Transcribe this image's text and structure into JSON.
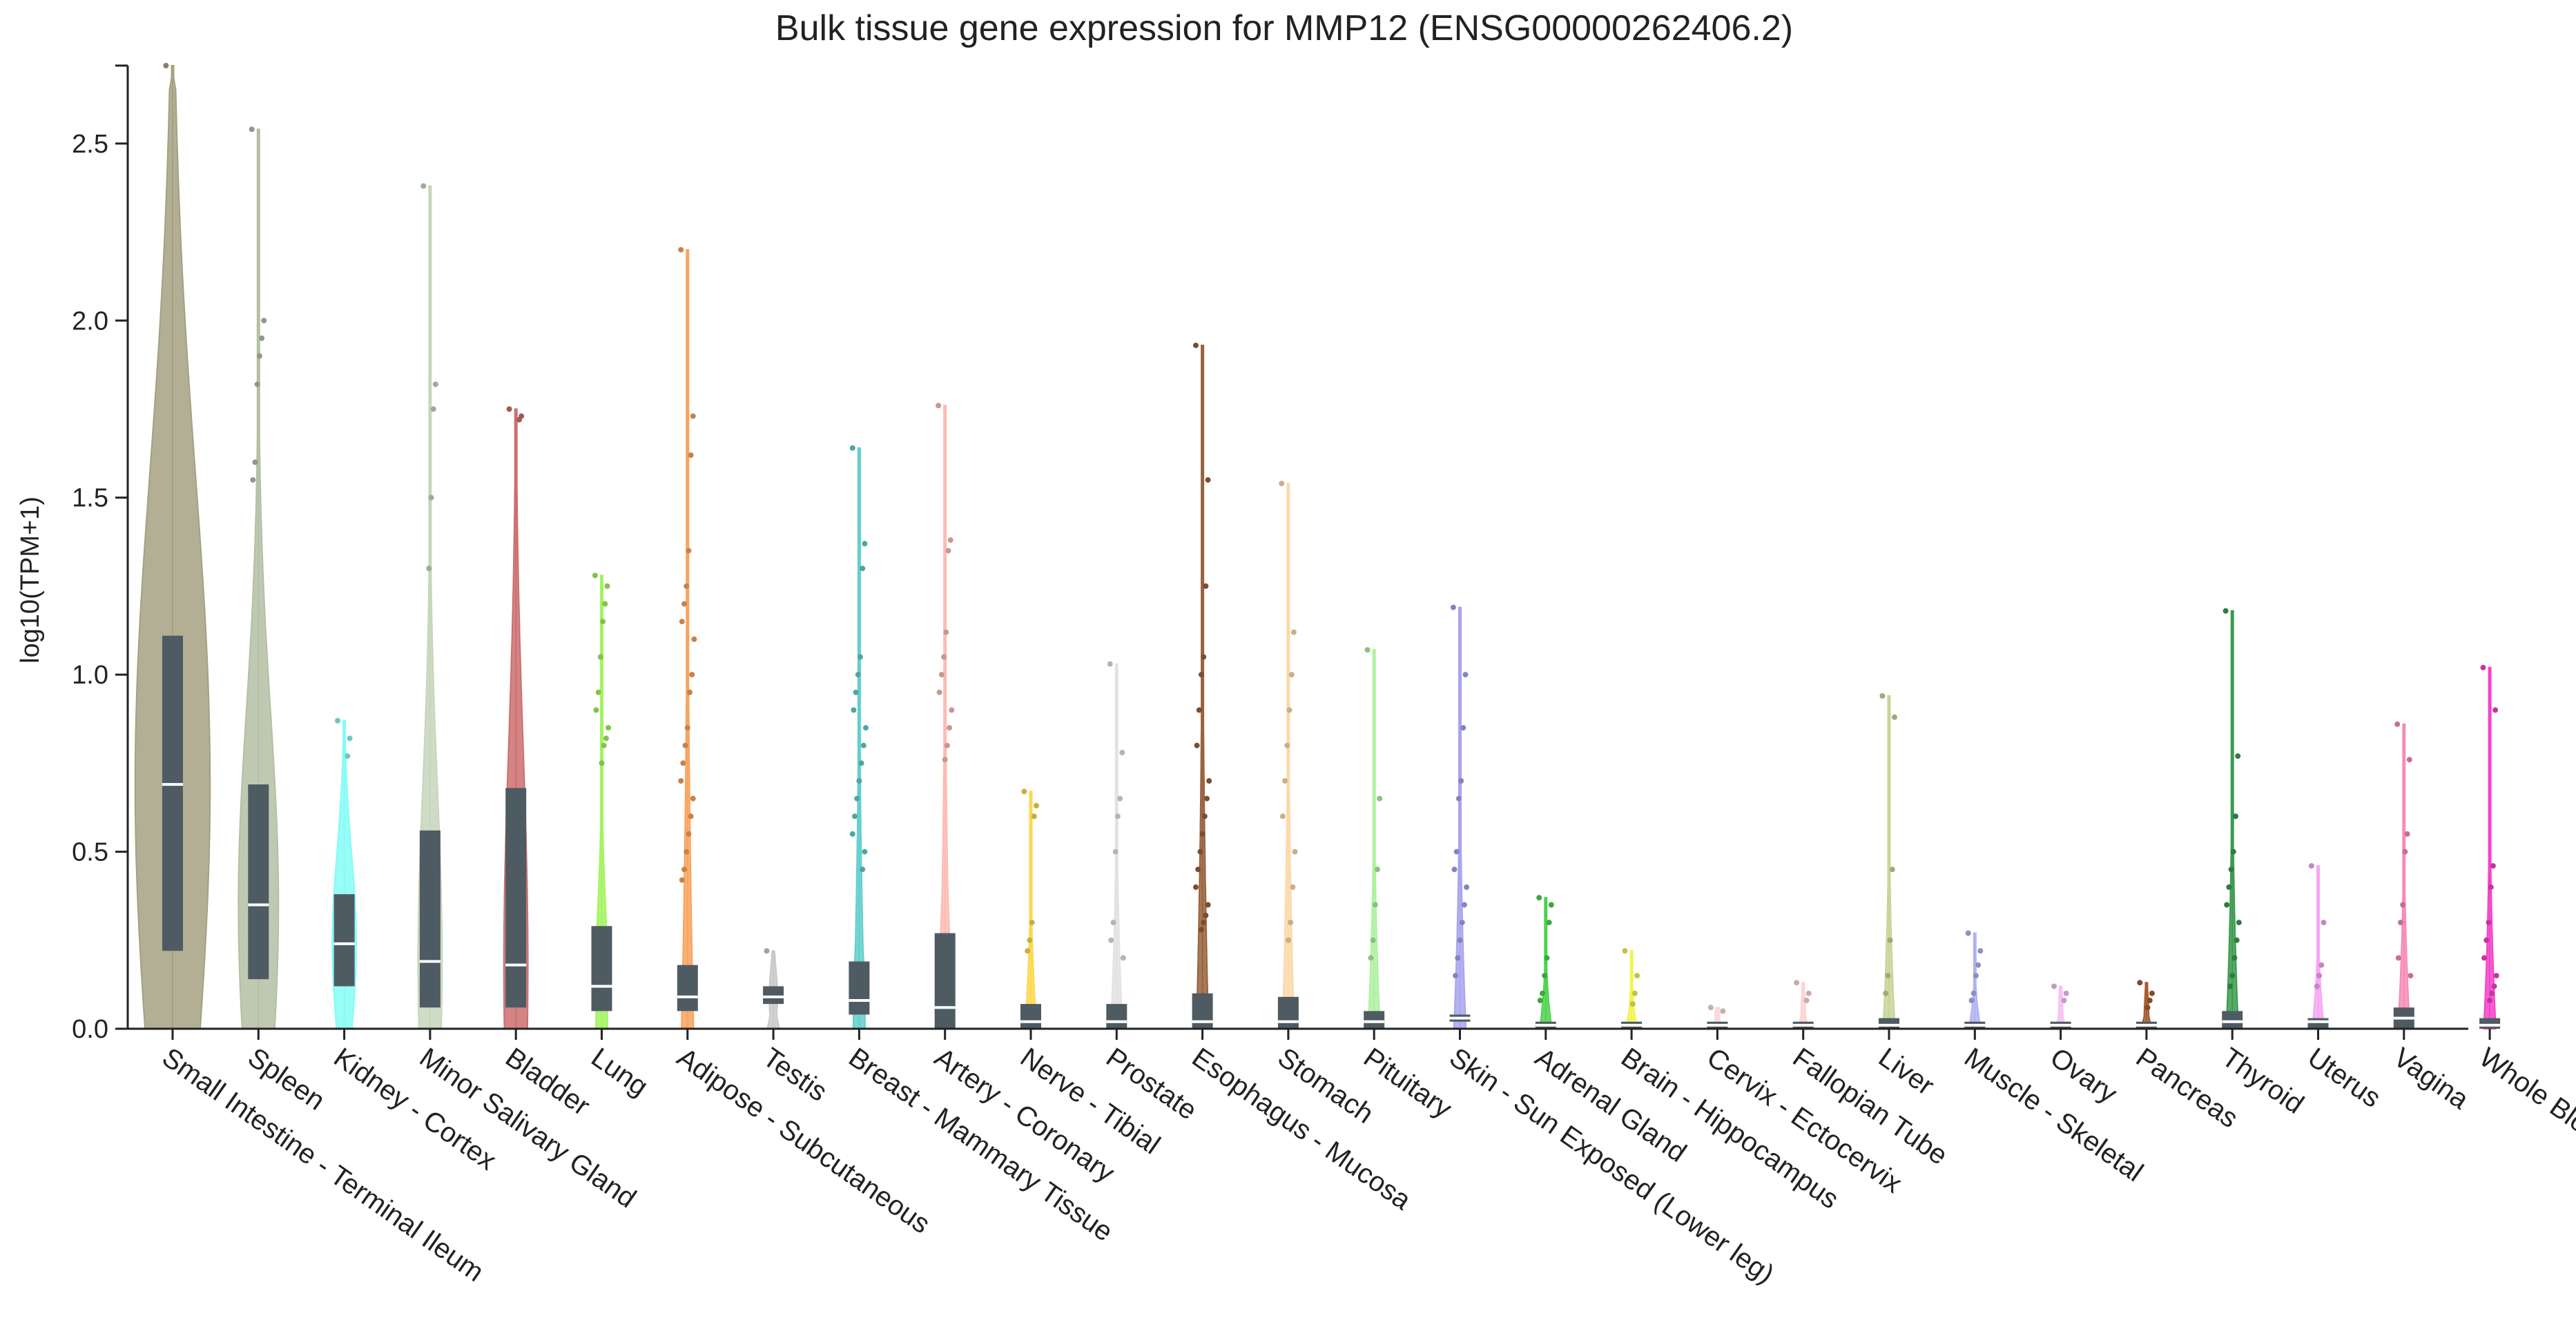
{
  "chart_data": {
    "type": "violin",
    "title": "Bulk tissue gene expression for MMP12 (ENSG00000262406.2)",
    "xlabel": "",
    "ylabel": "log10(TPM+1)",
    "ylim": [
      0,
      2.72
    ],
    "yticks": [
      "0.0",
      "0.5",
      "1.0",
      "1.5",
      "2.0",
      "2.5"
    ],
    "series": [
      {
        "name": "Small Intestine - Terminal Ileum",
        "color": "#a4a182",
        "max": 2.72,
        "q1": 0.22,
        "median": 0.69,
        "q3": 1.11,
        "width": 0.85,
        "bulge": 0.88,
        "outliers": [
          2.72
        ]
      },
      {
        "name": "Spleen",
        "color": "#b4bfa4",
        "max": 2.54,
        "q1": 0.14,
        "median": 0.35,
        "q3": 0.69,
        "width": 0.8,
        "bulge": 0.5,
        "outliers": [
          2.54,
          2.0,
          1.95,
          1.9,
          1.82,
          1.6,
          1.55
        ]
      },
      {
        "name": "Kidney - Cortex",
        "color": "#86fbf6",
        "max": 0.87,
        "q1": 0.12,
        "median": 0.24,
        "q3": 0.38,
        "width": 0.8,
        "bulge": 0.3,
        "outliers": [
          0.87,
          0.82,
          0.77
        ]
      },
      {
        "name": "Minor Salivary Gland",
        "color": "#c6d6bb",
        "max": 2.38,
        "q1": 0.06,
        "median": 0.19,
        "q3": 0.56,
        "width": 0.8,
        "bulge": 0.3,
        "outliers": [
          2.38,
          1.82,
          1.75,
          1.5,
          1.3
        ]
      },
      {
        "name": "Bladder",
        "color": "#cc6f6e",
        "max": 1.75,
        "q1": 0.06,
        "median": 0.18,
        "q3": 0.68,
        "width": 0.8,
        "bulge": 0.3,
        "outliers": [
          1.75,
          1.73,
          1.72
        ]
      },
      {
        "name": "Lung",
        "color": "#a3f35e",
        "max": 1.28,
        "q1": 0.05,
        "median": 0.12,
        "q3": 0.29,
        "width": 0.8,
        "bulge": 0.15,
        "outliers": [
          1.28,
          1.25,
          1.2,
          1.15,
          1.05,
          0.95,
          0.9,
          0.85,
          0.82,
          0.8,
          0.75
        ]
      },
      {
        "name": "Adipose - Subcutaneous",
        "color": "#f9a35e",
        "max": 2.2,
        "q1": 0.05,
        "median": 0.09,
        "q3": 0.18,
        "width": 0.8,
        "bulge": 0.12,
        "outliers": [
          2.2,
          1.73,
          1.62,
          1.35,
          1.25,
          1.2,
          1.15,
          1.1,
          1.0,
          0.95,
          0.85,
          0.8,
          0.75,
          0.7,
          0.65,
          0.6,
          0.55,
          0.5,
          0.45,
          0.42
        ]
      },
      {
        "name": "Testis",
        "color": "#c9c9c9",
        "max": 0.22,
        "q1": 0.07,
        "median": 0.09,
        "q3": 0.12,
        "width": 0.8,
        "bulge": 0.1,
        "outliers": [
          0.22
        ]
      },
      {
        "name": "Breast - Mammary Tissue",
        "color": "#61cfcc",
        "max": 1.64,
        "q1": 0.04,
        "median": 0.08,
        "q3": 0.19,
        "width": 0.8,
        "bulge": 0.15,
        "outliers": [
          1.64,
          1.37,
          1.3,
          1.05,
          1.0,
          0.95,
          0.9,
          0.85,
          0.8,
          0.75,
          0.7,
          0.65,
          0.6,
          0.55,
          0.5,
          0.45
        ]
      },
      {
        "name": "Artery - Coronary",
        "color": "#fcbcb3",
        "max": 1.76,
        "q1": 0.0,
        "median": 0.06,
        "q3": 0.27,
        "width": 0.8,
        "bulge": 0.15,
        "outliers": [
          1.76,
          1.38,
          1.35,
          1.12,
          1.05,
          1.0,
          0.95,
          0.9,
          0.85,
          0.8,
          0.76
        ]
      },
      {
        "name": "Nerve - Tibial",
        "color": "#fcd84f",
        "max": 0.67,
        "q1": 0.0,
        "median": 0.02,
        "q3": 0.07,
        "width": 0.8,
        "bulge": 0.1,
        "outliers": [
          0.67,
          0.63,
          0.6,
          0.3,
          0.25,
          0.22
        ]
      },
      {
        "name": "Prostate",
        "color": "#e2e2e2",
        "max": 1.03,
        "q1": 0.0,
        "median": 0.02,
        "q3": 0.07,
        "width": 0.8,
        "bulge": 0.1,
        "outliers": [
          1.03,
          0.78,
          0.65,
          0.6,
          0.5,
          0.3,
          0.25,
          0.2
        ]
      },
      {
        "name": "Esophagus - Mucosa",
        "color": "#98623d",
        "max": 1.93,
        "q1": 0.0,
        "median": 0.02,
        "q3": 0.1,
        "width": 0.8,
        "bulge": 0.12,
        "outliers": [
          1.93,
          1.55,
          1.25,
          1.05,
          1.0,
          0.9,
          0.8,
          0.7,
          0.65,
          0.6,
          0.55,
          0.5,
          0.45,
          0.4,
          0.35,
          0.32,
          0.3,
          0.28
        ]
      },
      {
        "name": "Stomach",
        "color": "#fbd9aa",
        "max": 1.54,
        "q1": 0.0,
        "median": 0.02,
        "q3": 0.09,
        "width": 0.8,
        "bulge": 0.12,
        "outliers": [
          1.54,
          1.12,
          1.0,
          0.9,
          0.8,
          0.7,
          0.6,
          0.5,
          0.4,
          0.3,
          0.25
        ]
      },
      {
        "name": "Pituitary",
        "color": "#aef1a0",
        "max": 1.07,
        "q1": 0.0,
        "median": 0.02,
        "q3": 0.05,
        "width": 0.8,
        "bulge": 0.1,
        "outliers": [
          1.07,
          0.65,
          0.45,
          0.35,
          0.25,
          0.2
        ]
      },
      {
        "name": "Skin - Sun Exposed (Lower leg)",
        "color": "#a9a4ef",
        "max": 1.19,
        "q1": 0.02,
        "median": 0.03,
        "q3": 0.04,
        "width": 0.8,
        "bulge": 0.1,
        "outliers": [
          1.19,
          1.0,
          0.85,
          0.7,
          0.65,
          0.5,
          0.45,
          0.4,
          0.35,
          0.3,
          0.25,
          0.2,
          0.15
        ]
      },
      {
        "name": "Adrenal Gland",
        "color": "#4bd34b",
        "max": 0.37,
        "q1": 0.0,
        "median": 0.01,
        "q3": 0.02,
        "width": 0.8,
        "bulge": 0.06,
        "outliers": [
          0.37,
          0.35,
          0.3,
          0.2,
          0.15,
          0.1,
          0.08
        ]
      },
      {
        "name": "Brain - Hippocampus",
        "color": "#f3f351",
        "max": 0.22,
        "q1": 0.0,
        "median": 0.01,
        "q3": 0.02,
        "width": 0.8,
        "bulge": 0.06,
        "outliers": [
          0.22,
          0.15,
          0.1,
          0.07
        ]
      },
      {
        "name": "Cervix - Ectocervix",
        "color": "#fbd8d8",
        "max": 0.06,
        "q1": 0.0,
        "median": 0.01,
        "q3": 0.02,
        "width": 0.8,
        "bulge": 0.06,
        "outliers": [
          0.06,
          0.05
        ]
      },
      {
        "name": "Fallopian Tube",
        "color": "#fcd4d3",
        "max": 0.13,
        "q1": 0.0,
        "median": 0.01,
        "q3": 0.02,
        "width": 0.8,
        "bulge": 0.06,
        "outliers": [
          0.13,
          0.1,
          0.08
        ]
      },
      {
        "name": "Liver",
        "color": "#c8d597",
        "max": 0.94,
        "q1": 0.0,
        "median": 0.01,
        "q3": 0.03,
        "width": 0.8,
        "bulge": 0.08,
        "outliers": [
          0.94,
          0.88,
          0.45,
          0.25,
          0.15,
          0.1
        ]
      },
      {
        "name": "Muscle - Skeletal",
        "color": "#b0b2f1",
        "max": 0.27,
        "q1": 0.0,
        "median": 0.01,
        "q3": 0.02,
        "width": 0.8,
        "bulge": 0.06,
        "outliers": [
          0.27,
          0.22,
          0.18,
          0.15,
          0.1,
          0.08
        ]
      },
      {
        "name": "Ovary",
        "color": "#f5c3f3",
        "max": 0.12,
        "q1": 0.0,
        "median": 0.01,
        "q3": 0.02,
        "width": 0.8,
        "bulge": 0.06,
        "outliers": [
          0.12,
          0.1,
          0.08
        ]
      },
      {
        "name": "Pancreas",
        "color": "#a65b2f",
        "max": 0.13,
        "q1": 0.0,
        "median": 0.01,
        "q3": 0.02,
        "width": 0.8,
        "bulge": 0.06,
        "outliers": [
          0.13,
          0.1,
          0.08,
          0.06
        ]
      },
      {
        "name": "Thyroid",
        "color": "#3c9a50",
        "max": 1.18,
        "q1": 0.0,
        "median": 0.02,
        "q3": 0.05,
        "width": 0.8,
        "bulge": 0.1,
        "outliers": [
          1.18,
          0.77,
          0.6,
          0.5,
          0.45,
          0.4,
          0.35,
          0.3,
          0.25,
          0.2,
          0.15,
          0.12
        ]
      },
      {
        "name": "Uterus",
        "color": "#f7a6f5",
        "max": 0.46,
        "q1": 0.0,
        "median": 0.02,
        "q3": 0.03,
        "width": 0.8,
        "bulge": 0.06,
        "outliers": [
          0.46,
          0.3,
          0.18,
          0.15,
          0.12
        ]
      },
      {
        "name": "Vagina",
        "color": "#f78bb8",
        "max": 0.86,
        "q1": 0.0,
        "median": 0.03,
        "q3": 0.06,
        "width": 0.8,
        "bulge": 0.1,
        "outliers": [
          0.86,
          0.76,
          0.55,
          0.5,
          0.35,
          0.3,
          0.2,
          0.15
        ]
      },
      {
        "name": "Whole Blood",
        "color": "#f542c8",
        "max": 1.02,
        "q1": 0.0,
        "median": 0.01,
        "q3": 0.03,
        "width": 0.8,
        "bulge": 0.08,
        "outliers": [
          1.02,
          0.9,
          0.46,
          0.4,
          0.3,
          0.25,
          0.2,
          0.15,
          0.12,
          0.1,
          0.08
        ]
      }
    ]
  }
}
